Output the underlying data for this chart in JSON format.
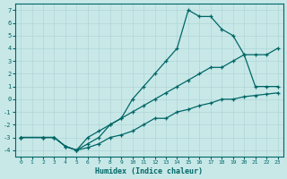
{
  "xlabel": "Humidex (Indice chaleur)",
  "bg_color": "#c8e8e8",
  "grid_color": "#b0d4d4",
  "line_color": "#006666",
  "xlim": [
    -0.5,
    23.5
  ],
  "ylim": [
    -4.5,
    7.5
  ],
  "xticks": [
    0,
    1,
    2,
    3,
    4,
    5,
    6,
    7,
    8,
    9,
    10,
    11,
    12,
    13,
    14,
    15,
    16,
    17,
    18,
    19,
    20,
    21,
    22,
    23
  ],
  "yticks": [
    -4,
    -3,
    -2,
    -1,
    0,
    1,
    2,
    3,
    4,
    5,
    6,
    7
  ],
  "line1_x": [
    0,
    2,
    3,
    4,
    5,
    6,
    7,
    8,
    9,
    10,
    11,
    12,
    13,
    14,
    15,
    16,
    17,
    18,
    19,
    20,
    21,
    22,
    23
  ],
  "line1_y": [
    -3,
    -3,
    -3,
    -3.7,
    -4,
    -3.5,
    -3,
    -2,
    -1.5,
    0,
    1,
    2,
    3,
    4,
    7,
    6.5,
    6.5,
    5.5,
    5,
    3.5,
    1,
    1,
    1
  ],
  "line2_x": [
    0,
    2,
    3,
    4,
    5,
    6,
    7,
    8,
    9,
    10,
    11,
    12,
    13,
    14,
    15,
    16,
    17,
    18,
    19,
    20,
    21,
    22,
    23
  ],
  "line2_y": [
    -3,
    -3,
    -3,
    -3.7,
    -4,
    -3,
    -2.5,
    -2,
    -1.5,
    -1,
    -0.5,
    0,
    0.5,
    1,
    1.5,
    2,
    2.5,
    2.5,
    3,
    3.5,
    3.5,
    3.5,
    4
  ],
  "line3_x": [
    0,
    2,
    3,
    4,
    5,
    6,
    7,
    8,
    9,
    10,
    11,
    12,
    13,
    14,
    15,
    16,
    17,
    18,
    19,
    20,
    21,
    22,
    23
  ],
  "line3_y": [
    -3,
    -3,
    -3,
    -3.7,
    -4,
    -3.8,
    -3.5,
    -3,
    -2.8,
    -2.5,
    -2,
    -1.5,
    -1.5,
    -1,
    -0.8,
    -0.5,
    -0.3,
    0,
    0,
    0.2,
    0.3,
    0.4,
    0.5
  ]
}
